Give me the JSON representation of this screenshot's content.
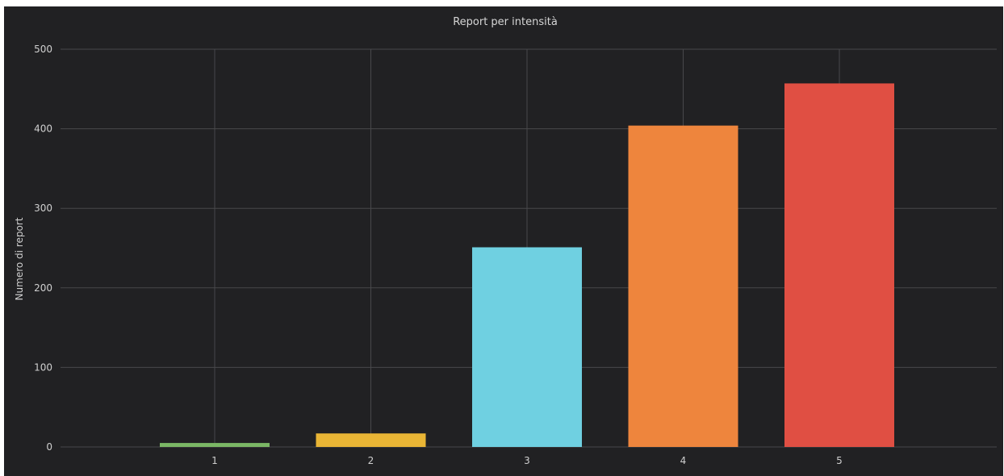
{
  "chart_data": {
    "type": "bar",
    "title": "Report per intensità",
    "xlabel": "",
    "ylabel": "Numero di report",
    "categories": [
      "1",
      "2",
      "3",
      "4",
      "5"
    ],
    "values": [
      5,
      17,
      251,
      404,
      457
    ],
    "colors": [
      "#7bb765",
      "#e9b535",
      "#6fd0e1",
      "#ee853d",
      "#e04f43"
    ],
    "ylim": [
      0,
      500
    ],
    "yticks": [
      0,
      100,
      200,
      300,
      400,
      500
    ],
    "grid": true,
    "background": "#212123"
  }
}
